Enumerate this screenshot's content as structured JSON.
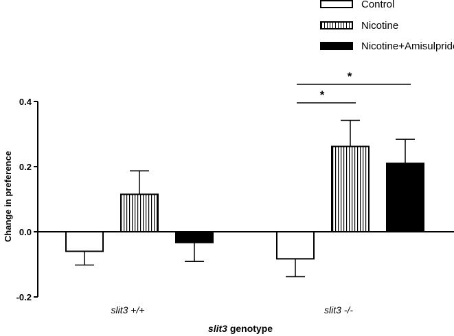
{
  "chart_data": {
    "type": "bar",
    "categories": [
      "slit3 +/+",
      "slit3 -/-"
    ],
    "series": [
      {
        "name": "Control",
        "values": [
          -0.06,
          -0.083
        ],
        "errors": [
          0.042,
          0.055
        ],
        "fill": "white"
      },
      {
        "name": "Nicotine",
        "values": [
          0.115,
          0.262
        ],
        "errors": [
          0.072,
          0.08
        ],
        "fill": "vertical-stripes"
      },
      {
        "name": "Nicotine+Amisulpride",
        "values": [
          -0.033,
          0.21
        ],
        "errors": [
          0.058,
          0.074
        ],
        "fill": "black"
      }
    ],
    "xlabel_italic": "slit3",
    "xlabel_rest": " genotype",
    "ylabel": "Change in preference",
    "ylim": [
      -0.2,
      0.4
    ],
    "yticks": [
      "-0.2",
      "0.0",
      "0.2",
      "0.4"
    ],
    "significance": [
      {
        "label": "*",
        "from_series": 0,
        "to_series": 1,
        "group": 1
      },
      {
        "label": "*",
        "from_series": 0,
        "to_series": 2,
        "group": 1
      }
    ],
    "legend_position": "top-right",
    "grid": false
  },
  "legend": {
    "items": [
      {
        "label": "Control"
      },
      {
        "label": "Nicotine"
      },
      {
        "label": "Nicotine+Amisulpride"
      }
    ]
  },
  "colors": {
    "axis": "#000000",
    "solid_bar": "#000000",
    "open_bar": "#ffffff"
  }
}
